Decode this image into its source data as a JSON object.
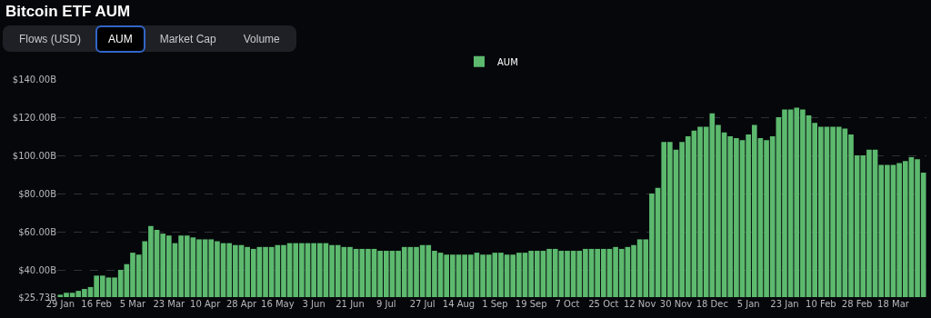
{
  "chart_data": {
    "type": "bar",
    "title": "Bitcoin ETF AUM",
    "annotations": [
      "Flows (USD)",
      "AUM",
      "Market Cap",
      "Volume"
    ],
    "categories": [
      "29 Jan",
      null,
      null,
      null,
      null,
      null,
      "16 Feb",
      null,
      null,
      null,
      null,
      null,
      "5 Mar",
      null,
      null,
      null,
      null,
      null,
      "23 Mar",
      null,
      null,
      null,
      null,
      null,
      "10 Apr",
      null,
      null,
      null,
      null,
      null,
      "28 Apr",
      null,
      null,
      null,
      null,
      null,
      "16 May",
      null,
      null,
      null,
      null,
      null,
      "3 Jun",
      null,
      null,
      null,
      null,
      null,
      "21 Jun",
      null,
      null,
      null,
      null,
      null,
      "9 Jul",
      null,
      null,
      null,
      null,
      null,
      "27 Jul",
      null,
      null,
      null,
      null,
      null,
      "14 Aug",
      null,
      null,
      null,
      null,
      null,
      "1 Sep",
      null,
      null,
      null,
      null,
      null,
      "19 Sep",
      null,
      null,
      null,
      null,
      null,
      "7 Oct",
      null,
      null,
      null,
      null,
      null,
      "25 Oct",
      null,
      null,
      null,
      null,
      null,
      "12 Nov",
      null,
      null,
      null,
      null,
      null,
      "30 Nov",
      null,
      null,
      null,
      null,
      null,
      "18 Dec",
      null,
      null,
      null,
      null,
      null,
      "5 Jan",
      null,
      null,
      null,
      null,
      null,
      "23 Jan",
      null,
      null,
      null,
      null,
      null,
      "10 Feb",
      null,
      null,
      null,
      null,
      null,
      "28 Feb",
      null,
      null,
      null,
      null,
      null,
      "18 Mar",
      null,
      null,
      null,
      null,
      null
    ],
    "series": [
      {
        "name": "AUM",
        "color": "#5cb96e",
        "values": [
          27,
          28,
          28,
          29,
          30,
          31,
          37,
          37,
          36,
          36,
          40,
          43,
          49,
          48,
          55,
          63,
          61,
          59,
          58,
          54,
          58,
          58,
          57,
          56,
          56,
          56,
          55,
          54,
          54,
          53,
          53,
          52,
          51,
          52,
          52,
          52,
          53,
          53,
          54,
          54,
          54,
          54,
          54,
          54,
          54,
          53,
          53,
          52,
          52,
          51,
          51,
          51,
          51,
          50,
          50,
          50,
          50,
          52,
          52,
          52,
          53,
          53,
          50,
          49,
          48,
          48,
          48,
          48,
          48,
          49,
          48,
          48,
          49,
          49,
          48,
          48,
          49,
          49,
          50,
          50,
          50,
          51,
          51,
          50,
          50,
          50,
          50,
          51,
          51,
          51,
          51,
          51,
          52,
          51,
          52,
          53,
          56,
          56,
          80,
          83,
          107,
          107,
          103,
          107,
          110,
          113,
          115,
          115,
          122,
          116,
          112,
          110,
          109,
          108,
          111,
          116,
          109,
          108,
          110,
          120,
          124,
          124,
          125,
          124,
          121,
          117,
          115,
          115,
          115,
          115,
          114,
          111,
          100,
          100,
          103,
          103,
          95,
          95,
          95,
          96,
          97,
          99,
          98,
          91
        ]
      }
    ],
    "ylim": [
      25.73,
      140
    ],
    "yticks": [
      {
        "value": 25.73,
        "label": "$25.73B"
      },
      {
        "value": 40,
        "label": "$40.00B"
      },
      {
        "value": 60,
        "label": "$60.00B"
      },
      {
        "value": 80,
        "label": "$80.00B"
      },
      {
        "value": 100,
        "label": "$100.00B"
      },
      {
        "value": 120,
        "label": "$120.00B"
      },
      {
        "value": 140,
        "label": "$140.00B"
      }
    ],
    "grid": "y",
    "legend": "top"
  }
}
